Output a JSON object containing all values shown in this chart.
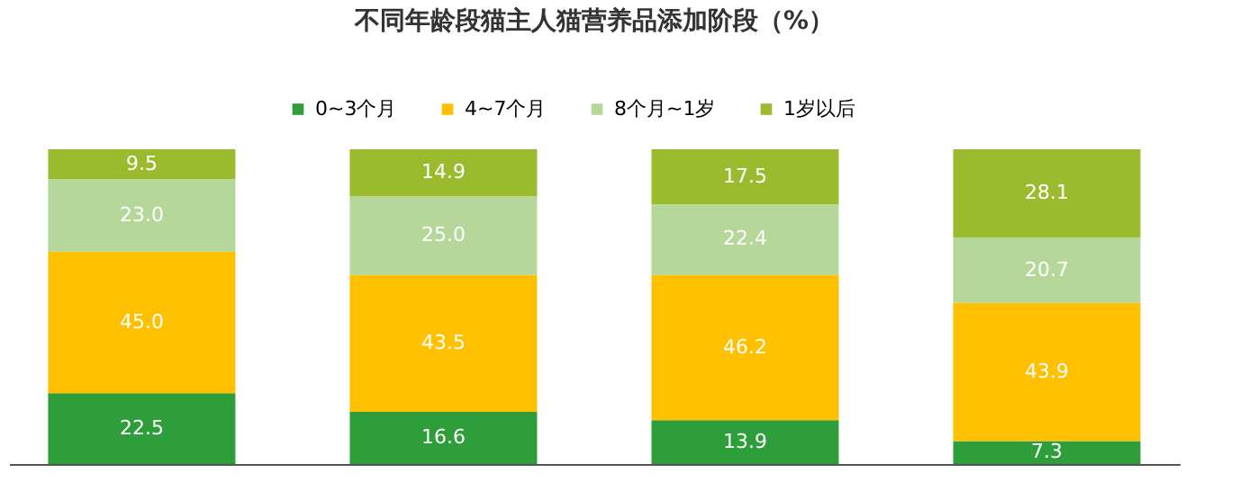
{
  "chart_data": {
    "type": "bar",
    "title": "不同年龄段猫主人猫营养品添加阶段（%）",
    "categories": [
      null,
      null,
      null,
      null
    ],
    "stacked": true,
    "legend": "top",
    "series": [
      {
        "name": "0~3个月",
        "color": "#2e9e3a",
        "values": [
          22.5,
          16.6,
          13.9,
          7.3
        ],
        "value_labels": [
          "22.5",
          "16.6",
          "13.9",
          "7.3"
        ]
      },
      {
        "name": "4~7个月",
        "color": "#ffc000",
        "values": [
          45.0,
          43.5,
          46.2,
          43.9
        ],
        "value_labels": [
          "45.0",
          "43.5",
          "46.2",
          "43.9"
        ]
      },
      {
        "name": "8个月~1岁",
        "color": "#b5d89a",
        "values": [
          23.0,
          25.0,
          22.4,
          20.7
        ],
        "value_labels": [
          "23.0",
          "25.0",
          "22.4",
          "20.7"
        ]
      },
      {
        "name": "1岁以后",
        "color": "#9bbb2e",
        "values": [
          9.5,
          14.9,
          17.5,
          28.1
        ],
        "value_labels": [
          "9.5",
          "14.9",
          "17.5",
          "28.1"
        ]
      }
    ]
  }
}
